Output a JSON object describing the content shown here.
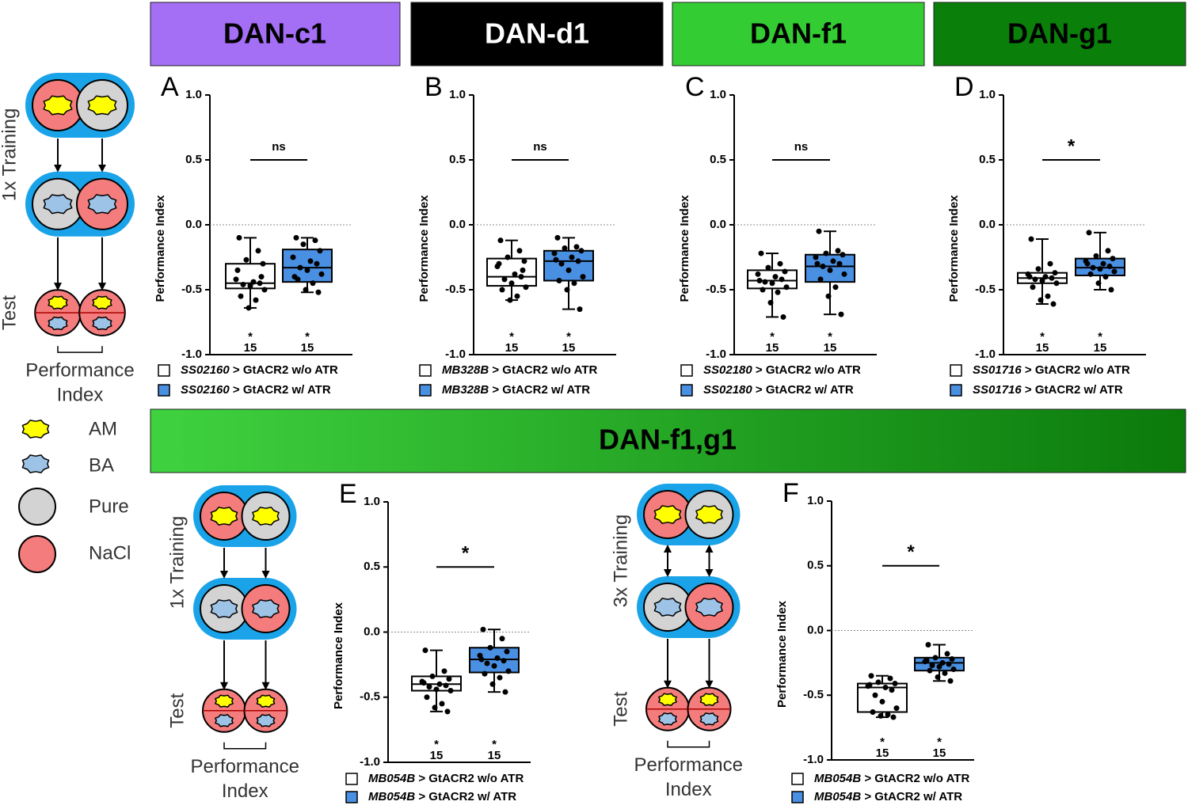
{
  "headers": [
    "DAN-c1",
    "DAN-d1",
    "DAN-f1",
    "DAN-g1"
  ],
  "banner": "DAN-f1,g1",
  "key": [
    "AM",
    "BA",
    "Pure",
    "NaCl"
  ],
  "schematics": [
    {
      "training": "1x Training",
      "test": "Test",
      "readout": [
        "Performance",
        "Index"
      ]
    },
    {
      "training": "1x Training",
      "test": "Test",
      "readout": [
        "Performance",
        "Index"
      ]
    },
    {
      "training": "3x Training",
      "test": "Test",
      "readout": [
        "Performance",
        "Index"
      ]
    }
  ],
  "chart_data": [
    {
      "type": "box",
      "panel": "A",
      "ylabel": "Performance Index",
      "ylim": [
        -1,
        1
      ],
      "yticks": [
        {
          "value": -1,
          "label": "-1.0"
        },
        {
          "value": -0.5,
          "label": "-0.5"
        },
        {
          "value": 0,
          "label": "0.0"
        },
        {
          "value": 0.5,
          "label": "0.5"
        },
        {
          "value": 1,
          "label": "1.0"
        }
      ],
      "significance": "ns",
      "series": [
        {
          "name": "SS02160",
          "suffix": "> GtACR2 w/o ATR",
          "color": "#ffffff",
          "min": -0.64,
          "q1": -0.49,
          "median": -0.45,
          "q3": -0.3,
          "max": -0.1,
          "n": 15,
          "n_mark": "*",
          "points": [
            -0.1,
            -0.2,
            -0.27,
            -0.3,
            -0.42,
            -0.44,
            -0.45,
            -0.46,
            -0.47,
            -0.5,
            -0.55,
            -0.58,
            -0.64,
            -0.4,
            -0.35
          ]
        },
        {
          "name": "SS02160",
          "suffix": "> GtACR2 w/ ATR",
          "color": "#4a90e2",
          "min": -0.52,
          "q1": -0.44,
          "median": -0.33,
          "q3": -0.19,
          "max": -0.1,
          "n": 15,
          "n_mark": "*",
          "points": [
            -0.1,
            -0.12,
            -0.15,
            -0.2,
            -0.25,
            -0.28,
            -0.3,
            -0.33,
            -0.35,
            -0.38,
            -0.42,
            -0.45,
            -0.5,
            -0.52,
            -0.4
          ]
        }
      ]
    },
    {
      "type": "box",
      "panel": "B",
      "ylabel": "Performance Index",
      "ylim": [
        -1,
        1
      ],
      "yticks": [
        {
          "value": -1,
          "label": "-1.0"
        },
        {
          "value": -0.5,
          "label": "-0.5"
        },
        {
          "value": 0,
          "label": "0.0"
        },
        {
          "value": 0.5,
          "label": "0.5"
        },
        {
          "value": 1,
          "label": "1.0"
        }
      ],
      "significance": "ns",
      "series": [
        {
          "name": "MB328B",
          "suffix": "> GtACR2 w/o  ATR",
          "color": "#ffffff",
          "min": -0.58,
          "q1": -0.47,
          "median": -0.4,
          "q3": -0.26,
          "max": -0.12,
          "n": 15,
          "n_mark": "*",
          "points": [
            -0.12,
            -0.2,
            -0.25,
            -0.28,
            -0.32,
            -0.38,
            -0.4,
            -0.42,
            -0.45,
            -0.48,
            -0.5,
            -0.55,
            -0.58,
            -0.35,
            -0.3
          ]
        },
        {
          "name": "MB328B",
          "suffix": "> GtACR2 w/ ATR",
          "color": "#4a90e2",
          "min": -0.65,
          "q1": -0.43,
          "median": -0.28,
          "q3": -0.2,
          "max": -0.1,
          "n": 15,
          "n_mark": "*",
          "points": [
            -0.1,
            -0.17,
            -0.18,
            -0.2,
            -0.22,
            -0.25,
            -0.28,
            -0.3,
            -0.35,
            -0.4,
            -0.43,
            -0.45,
            -0.5,
            -0.65,
            -0.27
          ]
        }
      ]
    },
    {
      "type": "box",
      "panel": "C",
      "ylabel": "Performance Index",
      "ylim": [
        -1,
        1
      ],
      "yticks": [
        {
          "value": -1,
          "label": "-1.0"
        },
        {
          "value": -0.5,
          "label": "-0.5"
        },
        {
          "value": 0,
          "label": "0.0"
        },
        {
          "value": 0.5,
          "label": "0.5"
        },
        {
          "value": 1,
          "label": "1.0"
        }
      ],
      "significance": "ns",
      "series": [
        {
          "name": "SS02180",
          "suffix": "> GtACR2 w/o ATR",
          "color": "#ffffff",
          "min": -0.71,
          "q1": -0.49,
          "median": -0.43,
          "q3": -0.35,
          "max": -0.22,
          "n": 15,
          "n_mark": "*",
          "points": [
            -0.22,
            -0.3,
            -0.33,
            -0.36,
            -0.38,
            -0.4,
            -0.42,
            -0.44,
            -0.45,
            -0.48,
            -0.5,
            -0.52,
            -0.6,
            -0.71,
            -0.43
          ]
        },
        {
          "name": "SS02180",
          "suffix": "> GtACR2 w/ ATR",
          "color": "#4a90e2",
          "min": -0.69,
          "q1": -0.44,
          "median": -0.32,
          "q3": -0.23,
          "max": -0.05,
          "n": 15,
          "n_mark": "*",
          "points": [
            -0.05,
            -0.2,
            -0.22,
            -0.23,
            -0.25,
            -0.28,
            -0.3,
            -0.32,
            -0.35,
            -0.38,
            -0.42,
            -0.48,
            -0.55,
            -0.69,
            -0.3
          ]
        }
      ]
    },
    {
      "type": "box",
      "panel": "D",
      "ylabel": "Performance Index",
      "ylim": [
        -1,
        1
      ],
      "yticks": [
        {
          "value": -1,
          "label": "-1.0"
        },
        {
          "value": -0.5,
          "label": "-0.5"
        },
        {
          "value": 0,
          "label": "0.0"
        },
        {
          "value": 0.5,
          "label": "0.5"
        },
        {
          "value": 1,
          "label": "1.0"
        }
      ],
      "significance": "*",
      "series": [
        {
          "name": "SS01716",
          "suffix": "> GtACR2 w/o ATR",
          "color": "#ffffff",
          "min": -0.61,
          "q1": -0.45,
          "median": -0.41,
          "q3": -0.37,
          "max": -0.11,
          "n": 15,
          "n_mark": "*",
          "points": [
            -0.11,
            -0.3,
            -0.34,
            -0.37,
            -0.38,
            -0.4,
            -0.41,
            -0.42,
            -0.43,
            -0.45,
            -0.48,
            -0.55,
            -0.58,
            -0.61,
            -0.4
          ]
        },
        {
          "name": "SS01716",
          "suffix": "> GtACR2 w/ ATR",
          "color": "#4a90e2",
          "min": -0.5,
          "q1": -0.39,
          "median": -0.33,
          "q3": -0.26,
          "max": -0.06,
          "n": 15,
          "n_mark": "*",
          "points": [
            -0.06,
            -0.2,
            -0.24,
            -0.26,
            -0.28,
            -0.3,
            -0.32,
            -0.33,
            -0.34,
            -0.36,
            -0.38,
            -0.4,
            -0.45,
            -0.5,
            -0.3
          ]
        }
      ]
    },
    {
      "type": "box",
      "panel": "E",
      "ylabel": "Performance Index",
      "ylim": [
        -1,
        1
      ],
      "yticks": [
        {
          "value": -1,
          "label": "-1.0"
        },
        {
          "value": -0.5,
          "label": "-0.5"
        },
        {
          "value": 0,
          "label": "0.0"
        },
        {
          "value": 0.5,
          "label": "0.5"
        },
        {
          "value": 1,
          "label": "1.0"
        }
      ],
      "significance": "*",
      "series": [
        {
          "name": "MB054B",
          "suffix": "> GtACR2 w/o ATR",
          "color": "#ffffff",
          "min": -0.61,
          "q1": -0.45,
          "median": -0.4,
          "q3": -0.34,
          "max": -0.14,
          "n": 15,
          "n_mark": "*",
          "points": [
            -0.14,
            -0.3,
            -0.34,
            -0.36,
            -0.38,
            -0.4,
            -0.41,
            -0.42,
            -0.44,
            -0.45,
            -0.5,
            -0.55,
            -0.58,
            -0.61,
            -0.39
          ]
        },
        {
          "name": "MB054B",
          "suffix": "> GtACR2 w/ ATR",
          "color": "#4a90e2",
          "min": -0.46,
          "q1": -0.31,
          "median": -0.21,
          "q3": -0.12,
          "max": 0.02,
          "n": 15,
          "n_mark": "*",
          "points": [
            0.02,
            -0.05,
            -0.12,
            -0.15,
            -0.18,
            -0.2,
            -0.22,
            -0.24,
            -0.26,
            -0.3,
            -0.32,
            -0.35,
            -0.4,
            -0.46,
            -0.21
          ]
        }
      ]
    },
    {
      "type": "box",
      "panel": "F",
      "ylabel": "Performance Index",
      "ylim": [
        -1,
        1
      ],
      "yticks": [
        {
          "value": -1,
          "label": "-1.0"
        },
        {
          "value": -0.5,
          "label": "-0.5"
        },
        {
          "value": 0,
          "label": "0.0"
        },
        {
          "value": 0.5,
          "label": "0.5"
        },
        {
          "value": 1,
          "label": "1.0"
        }
      ],
      "significance": "*",
      "series": [
        {
          "name": "MB054B",
          "suffix": "> GtACR2 w/o ATR",
          "color": "#ffffff",
          "min": -0.67,
          "q1": -0.63,
          "median": -0.44,
          "q3": -0.41,
          "max": -0.35,
          "n": 15,
          "n_mark": "*",
          "points": [
            -0.35,
            -0.37,
            -0.4,
            -0.41,
            -0.43,
            -0.44,
            -0.46,
            -0.5,
            -0.55,
            -0.6,
            -0.63,
            -0.65,
            -0.66,
            -0.67,
            -0.42
          ]
        },
        {
          "name": "MB054B",
          "suffix": "> GtACR2 w/ ATR",
          "color": "#4a90e2",
          "min": -0.39,
          "q1": -0.31,
          "median": -0.25,
          "q3": -0.21,
          "max": -0.11,
          "n": 15,
          "n_mark": "*",
          "points": [
            -0.11,
            -0.18,
            -0.21,
            -0.22,
            -0.24,
            -0.25,
            -0.26,
            -0.27,
            -0.28,
            -0.3,
            -0.31,
            -0.33,
            -0.36,
            -0.39,
            -0.23
          ]
        }
      ]
    }
  ]
}
